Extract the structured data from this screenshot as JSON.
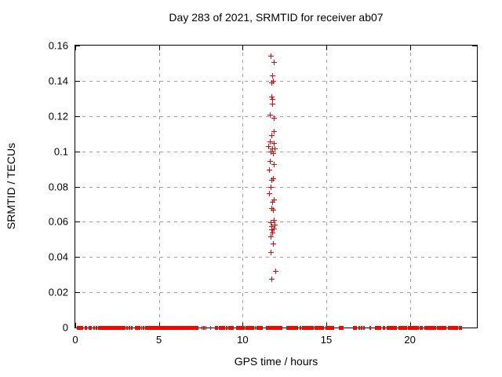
{
  "window": {
    "title": "Day 283 of 2021, SRMTID for receiver ab07"
  },
  "chart_data": {
    "type": "scatter",
    "title": "Day 283 of 2021, SRMTID for receiver ab07",
    "xlabel": "GPS time / hours",
    "ylabel": "SRMTID / TECUs",
    "xlim": [
      0,
      24
    ],
    "ylim": [
      0,
      0.16
    ],
    "grid": true,
    "legend": "none",
    "marker": "plus",
    "marker_color": "#ff0000",
    "grid_color": "#a0a0a0",
    "xticks": [
      {
        "value": 0,
        "label": "0"
      },
      {
        "value": 5,
        "label": "5"
      },
      {
        "value": 10,
        "label": "10"
      },
      {
        "value": 15,
        "label": "15"
      },
      {
        "value": 20,
        "label": "20"
      }
    ],
    "yticks": [
      {
        "value": 0,
        "label": "0"
      },
      {
        "value": 0.02,
        "label": "0.02"
      },
      {
        "value": 0.04,
        "label": "0.04"
      },
      {
        "value": 0.06,
        "label": "0.06"
      },
      {
        "value": 0.08,
        "label": "0.08"
      },
      {
        "value": 0.1,
        "label": "0.1"
      },
      {
        "value": 0.12,
        "label": "0.12"
      },
      {
        "value": 0.14,
        "label": "0.14"
      },
      {
        "value": 0.16,
        "label": "0.16"
      }
    ],
    "cluster_points": [
      [
        11.68,
        0.154
      ],
      [
        11.88,
        0.1506
      ],
      [
        11.77,
        0.1432
      ],
      [
        11.81,
        0.1398
      ],
      [
        11.71,
        0.1392
      ],
      [
        11.74,
        0.131
      ],
      [
        11.78,
        0.1299
      ],
      [
        11.77,
        0.127
      ],
      [
        11.61,
        0.1206
      ],
      [
        11.84,
        0.1188
      ],
      [
        11.88,
        0.1114
      ],
      [
        11.74,
        0.1092
      ],
      [
        11.61,
        0.1058
      ],
      [
        11.84,
        0.1048
      ],
      [
        11.54,
        0.1029
      ],
      [
        11.77,
        0.1018
      ],
      [
        11.92,
        0.1014
      ],
      [
        11.69,
        0.0999
      ],
      [
        11.8,
        0.0989
      ],
      [
        11.64,
        0.0944
      ],
      [
        11.84,
        0.0925
      ],
      [
        11.58,
        0.0896
      ],
      [
        11.8,
        0.0848
      ],
      [
        11.74,
        0.0837
      ],
      [
        11.69,
        0.0797
      ],
      [
        11.58,
        0.0763
      ],
      [
        11.84,
        0.0727
      ],
      [
        11.77,
        0.0713
      ],
      [
        11.74,
        0.0679
      ],
      [
        11.8,
        0.0668
      ],
      [
        11.84,
        0.0612
      ],
      [
        11.69,
        0.0597
      ],
      [
        11.89,
        0.0585
      ],
      [
        11.74,
        0.0575
      ],
      [
        11.88,
        0.056
      ],
      [
        11.74,
        0.0556
      ],
      [
        11.77,
        0.0538
      ],
      [
        11.69,
        0.0516
      ],
      [
        11.8,
        0.0479
      ],
      [
        11.69,
        0.0427
      ],
      [
        11.96,
        0.0319
      ],
      [
        11.74,
        0.0275
      ]
    ],
    "baseline_value": 0,
    "baseline_segments": [
      [
        0.09,
        0.47
      ],
      [
        0.54,
        0.71
      ],
      [
        0.79,
        0.98
      ],
      [
        1.06,
        1.16
      ],
      [
        1.21,
        1.29
      ],
      [
        1.34,
        2.99
      ],
      [
        3.07,
        3.15
      ],
      [
        3.2,
        3.26
      ],
      [
        3.31,
        3.41
      ],
      [
        3.54,
        3.88
      ],
      [
        3.93,
        4.0
      ],
      [
        4.04,
        4.11
      ],
      [
        4.16,
        7.34
      ],
      [
        7.54,
        7.6
      ],
      [
        7.65,
        7.72
      ],
      [
        7.76,
        7.82
      ],
      [
        8.04,
        8.12
      ],
      [
        8.35,
        8.54
      ],
      [
        8.58,
        8.97
      ],
      [
        9.02,
        9.08
      ],
      [
        9.13,
        9.47
      ],
      [
        9.59,
        10.14
      ],
      [
        10.18,
        10.48
      ],
      [
        10.52,
        10.68
      ],
      [
        10.73,
        10.8
      ],
      [
        10.83,
        11.22
      ],
      [
        11.41,
        12.39
      ],
      [
        12.62,
        13.32
      ],
      [
        13.4,
        13.48
      ],
      [
        13.55,
        14.25
      ],
      [
        14.3,
        14.87
      ],
      [
        14.95,
        15.49
      ],
      [
        15.73,
        16.04
      ],
      [
        16.58,
        16.81
      ],
      [
        16.9,
        17.0
      ],
      [
        17.05,
        17.17
      ],
      [
        17.2,
        17.28
      ],
      [
        17.59,
        17.64
      ],
      [
        17.9,
        18.29
      ],
      [
        18.37,
        18.52
      ],
      [
        18.6,
        19.22
      ],
      [
        19.3,
        19.84
      ],
      [
        19.89,
        20.54
      ],
      [
        20.59,
        20.77
      ],
      [
        20.85,
        21.08
      ],
      [
        21.11,
        21.55
      ],
      [
        21.62,
        22.17
      ],
      [
        22.25,
        22.87
      ],
      [
        22.92,
        23.1
      ]
    ]
  }
}
